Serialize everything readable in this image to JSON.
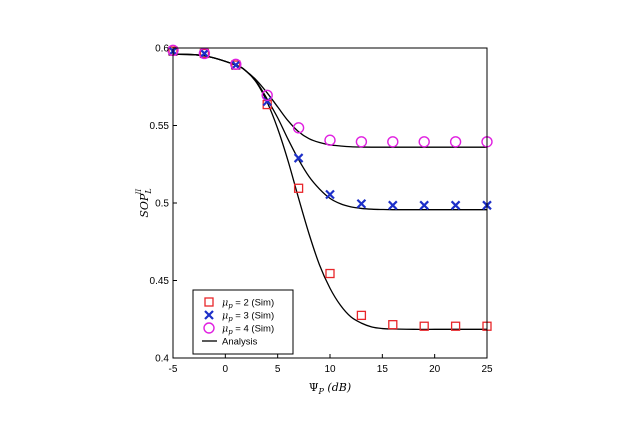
{
  "chart_data": {
    "type": "line",
    "title": "",
    "xlabel": {
      "base": "Ψ",
      "sub": "P",
      "unit": "(dB)"
    },
    "ylabel": {
      "base": "SOP",
      "sub": "L",
      "sup": "II"
    },
    "xlim": [
      -5,
      25
    ],
    "ylim": [
      0.4,
      0.6
    ],
    "x_ticks": [
      "-5",
      "0",
      "5",
      "10",
      "15",
      "20",
      "25"
    ],
    "y_ticks": [
      "0.4",
      "0.45",
      "0.5",
      "0.55",
      "0.6"
    ],
    "grid": false,
    "legend_position": "bottom-left",
    "series": [
      {
        "name": "μp = 2 (Sim)",
        "legend_prefix": "μ",
        "legend_sub": "p",
        "legend_rest": " = 2 (Sim)",
        "marker": "square",
        "color": "#e8262a",
        "x": [
          -5,
          -2,
          1,
          4,
          7,
          10,
          13,
          16,
          19,
          22,
          25
        ],
        "y": [
          0.598,
          0.5965,
          0.589,
          0.5635,
          0.5095,
          0.4545,
          0.4275,
          0.4215,
          0.4205,
          0.4205,
          0.4205
        ]
      },
      {
        "name": "μp = 3 (Sim)",
        "legend_prefix": "μ",
        "legend_sub": "p",
        "legend_rest": " = 3 (Sim)",
        "marker": "x",
        "color": "#1c2fc8",
        "x": [
          -5,
          -2,
          1,
          4,
          7,
          10,
          13,
          16,
          19,
          22,
          25
        ],
        "y": [
          0.598,
          0.5965,
          0.589,
          0.5655,
          0.529,
          0.5055,
          0.4995,
          0.4985,
          0.4985,
          0.4985,
          0.4985
        ]
      },
      {
        "name": "μp = 4 (Sim)",
        "legend_prefix": "μ",
        "legend_sub": "p",
        "legend_rest": " = 4 (Sim)",
        "marker": "circle",
        "color": "#e020e0",
        "x": [
          -5,
          -2,
          1,
          4,
          7,
          10,
          13,
          16,
          19,
          22,
          25
        ],
        "y": [
          0.5985,
          0.5965,
          0.5895,
          0.5695,
          0.5485,
          0.5405,
          0.5395,
          0.5395,
          0.5395,
          0.5395,
          0.5395
        ]
      }
    ],
    "analysis": {
      "name": "Analysis",
      "color": "#000000",
      "curves": [
        {
          "x": [
            -5,
            -2,
            1,
            2,
            3,
            4,
            5,
            6,
            7,
            8,
            9,
            10,
            11,
            12,
            13,
            14,
            15,
            16,
            18,
            20,
            22,
            25
          ],
          "y": [
            0.596,
            0.595,
            0.589,
            0.585,
            0.5775,
            0.565,
            0.548,
            0.527,
            0.503,
            0.48,
            0.46,
            0.445,
            0.434,
            0.4265,
            0.4225,
            0.42,
            0.419,
            0.4187,
            0.4185,
            0.4185,
            0.4185,
            0.4185
          ]
        },
        {
          "x": [
            -5,
            -2,
            1,
            2,
            3,
            4,
            5,
            6,
            7,
            8,
            9,
            10,
            11,
            12,
            13,
            14,
            15,
            16,
            18,
            20,
            22,
            25
          ],
          "y": [
            0.596,
            0.595,
            0.589,
            0.585,
            0.578,
            0.567,
            0.555,
            0.541,
            0.528,
            0.517,
            0.509,
            0.503,
            0.4995,
            0.4975,
            0.4965,
            0.496,
            0.4958,
            0.4957,
            0.4957,
            0.4957,
            0.4957,
            0.4957
          ]
        },
        {
          "x": [
            -5,
            -2,
            1,
            2,
            3,
            4,
            5,
            6,
            7,
            8,
            9,
            10,
            11,
            12,
            13,
            14,
            15,
            16,
            18,
            20,
            22,
            25
          ],
          "y": [
            0.596,
            0.595,
            0.589,
            0.585,
            0.579,
            0.571,
            0.562,
            0.553,
            0.546,
            0.5415,
            0.539,
            0.5375,
            0.5368,
            0.5363,
            0.5361,
            0.536,
            0.536,
            0.536,
            0.536,
            0.536,
            0.536,
            0.536
          ]
        }
      ]
    }
  }
}
